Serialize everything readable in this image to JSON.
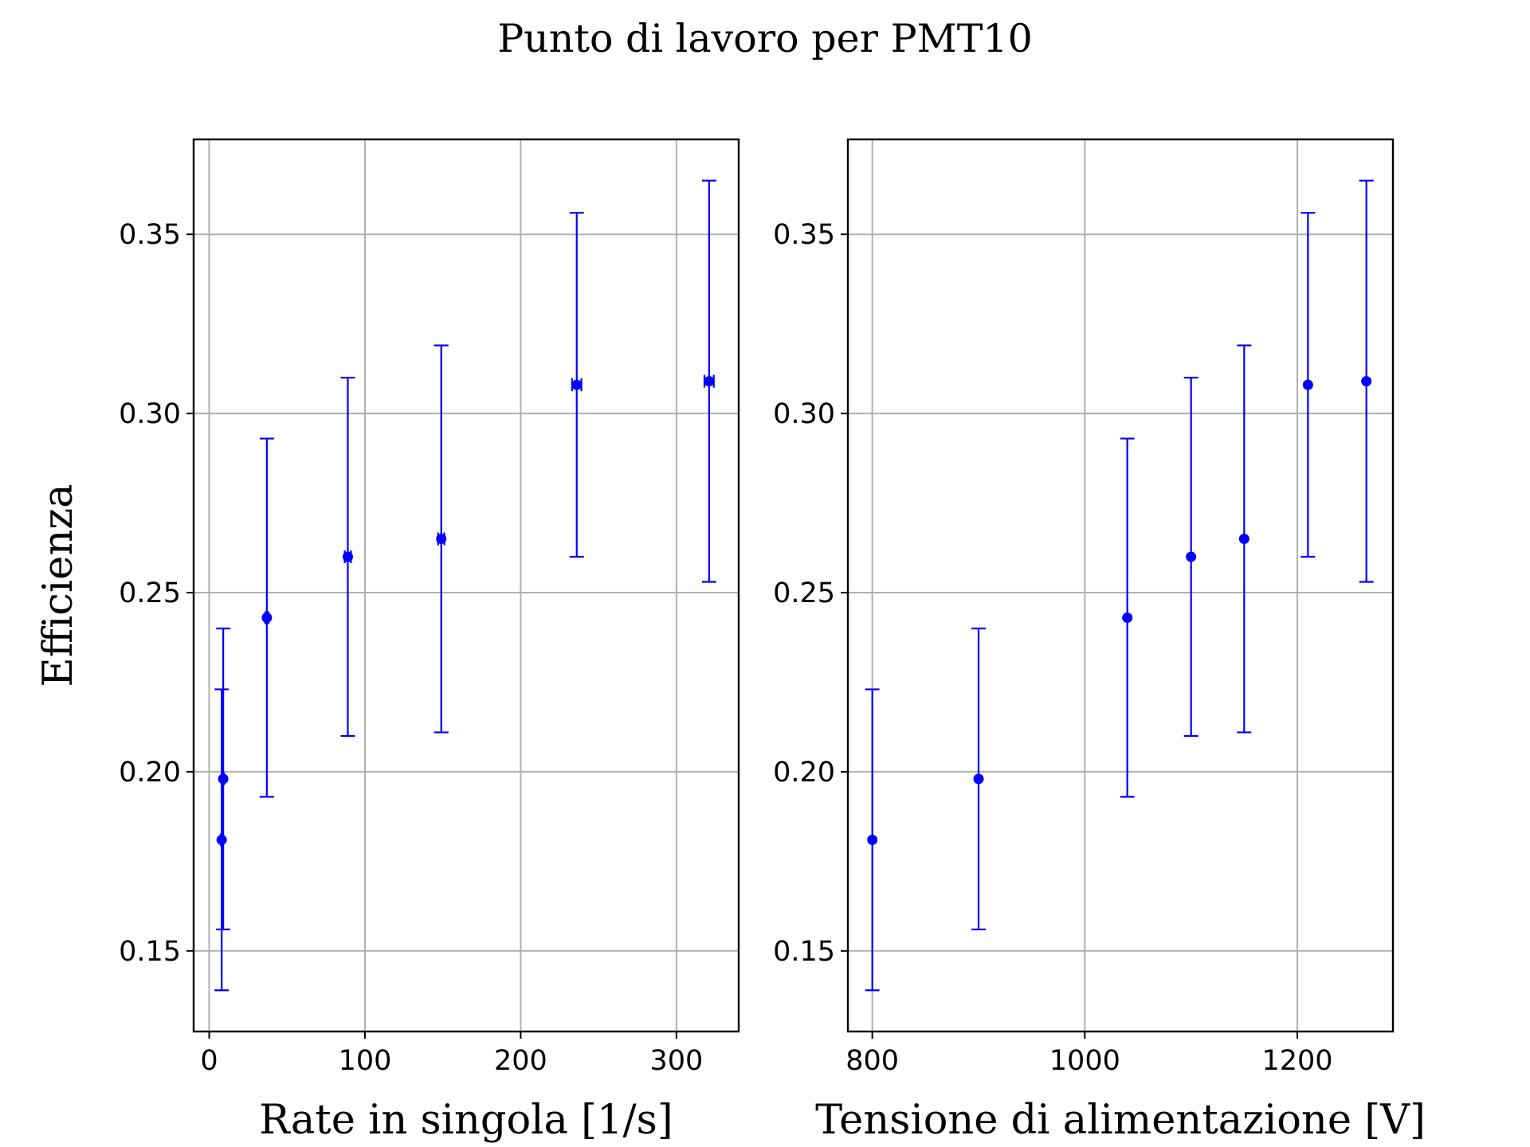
{
  "chart_data": {
    "title": "Punto di lavoro per PMT10",
    "color": "#0000ff",
    "panels": [
      {
        "type": "scatter",
        "xlabel": "Rate in singola [1/s]",
        "ylabel": "Efficienza",
        "xlim": [
          -10,
          340
        ],
        "ylim": [
          0.1275,
          0.3765
        ],
        "xticks": [
          0,
          100,
          200,
          300
        ],
        "yticks": [
          0.15,
          0.2,
          0.25,
          0.3,
          0.35
        ],
        "xtick_labels": [
          "0",
          "100",
          "200",
          "300"
        ],
        "ytick_labels": [
          "0.15",
          "0.20",
          "0.25",
          "0.30",
          "0.35"
        ],
        "grid": true,
        "points": [
          {
            "x": 8,
            "y": 0.181,
            "yerr": 0.042,
            "xerr": 0.5
          },
          {
            "x": 9,
            "y": 0.198,
            "yerr": 0.042,
            "xerr": 0.5
          },
          {
            "x": 37,
            "y": 0.243,
            "yerr": 0.05,
            "xerr": 1
          },
          {
            "x": 89,
            "y": 0.26,
            "yerr": 0.05,
            "xerr": 2
          },
          {
            "x": 149,
            "y": 0.265,
            "yerr": 0.054,
            "xerr": 2
          },
          {
            "x": 236,
            "y": 0.308,
            "yerr": 0.048,
            "xerr": 3
          },
          {
            "x": 321,
            "y": 0.309,
            "yerr": 0.056,
            "xerr": 3
          }
        ]
      },
      {
        "type": "scatter",
        "xlabel": "Tensione di alimentazione [V]",
        "ylabel": "",
        "xlim": [
          777,
          1290
        ],
        "ylim": [
          0.1275,
          0.3765
        ],
        "xticks": [
          800,
          1000,
          1200
        ],
        "yticks": [
          0.15,
          0.2,
          0.25,
          0.3,
          0.35
        ],
        "xtick_labels": [
          "800",
          "1000",
          "1200"
        ],
        "ytick_labels": [
          "0.15",
          "0.20",
          "0.25",
          "0.30",
          "0.35"
        ],
        "grid": true,
        "points": [
          {
            "x": 800,
            "y": 0.181,
            "yerr": 0.042,
            "xerr": 0
          },
          {
            "x": 900,
            "y": 0.198,
            "yerr": 0.042,
            "xerr": 0
          },
          {
            "x": 1040,
            "y": 0.243,
            "yerr": 0.05,
            "xerr": 0
          },
          {
            "x": 1100,
            "y": 0.26,
            "yerr": 0.05,
            "xerr": 0
          },
          {
            "x": 1150,
            "y": 0.265,
            "yerr": 0.054,
            "xerr": 0
          },
          {
            "x": 1210,
            "y": 0.308,
            "yerr": 0.048,
            "xerr": 0
          },
          {
            "x": 1265,
            "y": 0.309,
            "yerr": 0.056,
            "xerr": 0
          }
        ]
      }
    ]
  }
}
